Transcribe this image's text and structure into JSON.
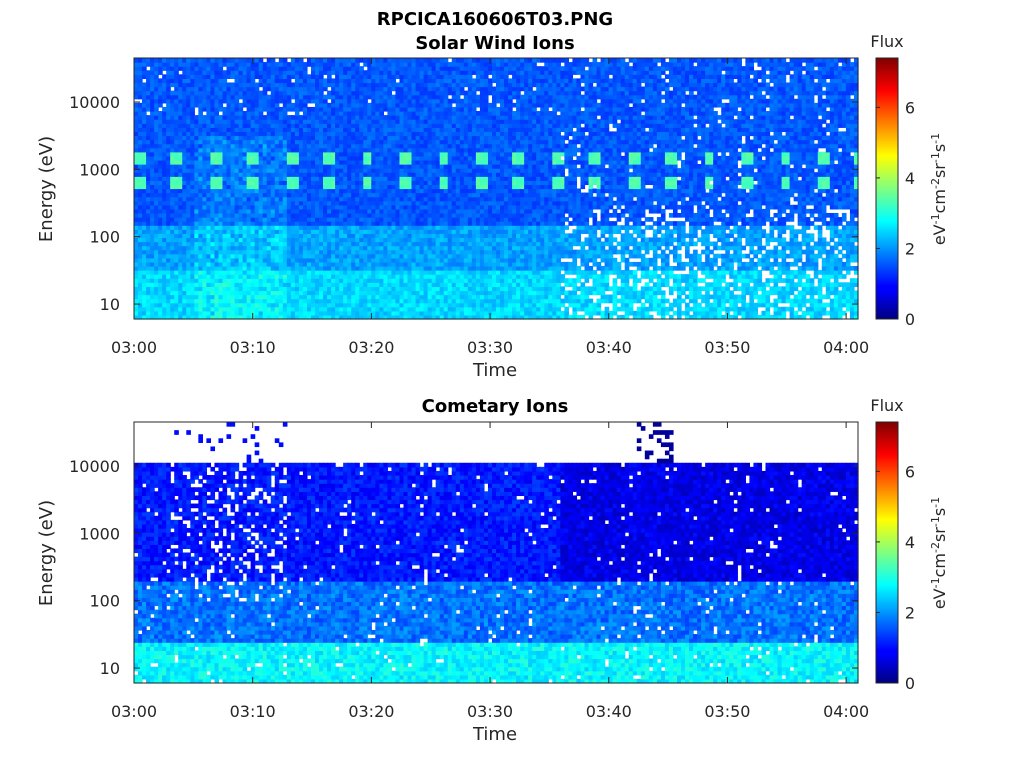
{
  "figure": {
    "file_title": "RPCICA160606T03.PNG"
  },
  "chart_data": [
    {
      "type": "heatmap",
      "title": "Solar Wind Ions",
      "xlabel": "Time",
      "ylabel": "Energy (eV)",
      "y_scale": "log",
      "ylim": [
        6,
        45000
      ],
      "x_tick_labels": [
        "03:00",
        "03:10",
        "03:20",
        "03:30",
        "03:40",
        "03:50",
        "04:00"
      ],
      "x_ticks_min": [
        0,
        10,
        20,
        30,
        40,
        50,
        60
      ],
      "xlim_min": [
        0,
        61
      ],
      "y_tick_labels": [
        "10",
        "100",
        "1000",
        "10000"
      ],
      "y_ticks": [
        10,
        100,
        1000,
        10000
      ],
      "colorbar": {
        "label": "Flux",
        "units_label": "eV-1cm-2sr-1s-1",
        "range": [
          0,
          7.4
        ],
        "tick_labels": [
          "0",
          "2",
          "4",
          "6"
        ],
        "ticks": [
          0,
          2,
          4,
          6
        ],
        "colormap": "jet"
      },
      "features": {
        "background_flux": 1.3,
        "low_energy_flux": 2.6,
        "peak_energies_eV": [
          650,
          1500
        ],
        "peak_flux": 3.2,
        "pulse_period_min": 3.2,
        "change_time_min": 36
      }
    },
    {
      "type": "heatmap",
      "title": "Cometary Ions",
      "xlabel": "Time",
      "ylabel": "Energy (eV)",
      "y_scale": "log",
      "ylim": [
        6,
        45000
      ],
      "x_tick_labels": [
        "03:00",
        "03:10",
        "03:20",
        "03:30",
        "03:40",
        "03:50",
        "04:00"
      ],
      "x_ticks_min": [
        0,
        10,
        20,
        30,
        40,
        50,
        60
      ],
      "xlim_min": [
        0,
        61
      ],
      "y_tick_labels": [
        "10",
        "100",
        "1000",
        "10000"
      ],
      "y_ticks": [
        10,
        100,
        1000,
        10000
      ],
      "colorbar": {
        "label": "Flux",
        "units_label": "eV-1cm-2sr-1s-1",
        "range": [
          0,
          7.4
        ],
        "tick_labels": [
          "0",
          "2",
          "4",
          "6"
        ],
        "ticks": [
          0,
          2,
          4,
          6
        ],
        "colormap": "jet"
      },
      "features": {
        "background_flux": 0.8,
        "low_energy_flux": 2.8,
        "max_energy_eV": 11000,
        "change_time_min": 36
      }
    }
  ]
}
